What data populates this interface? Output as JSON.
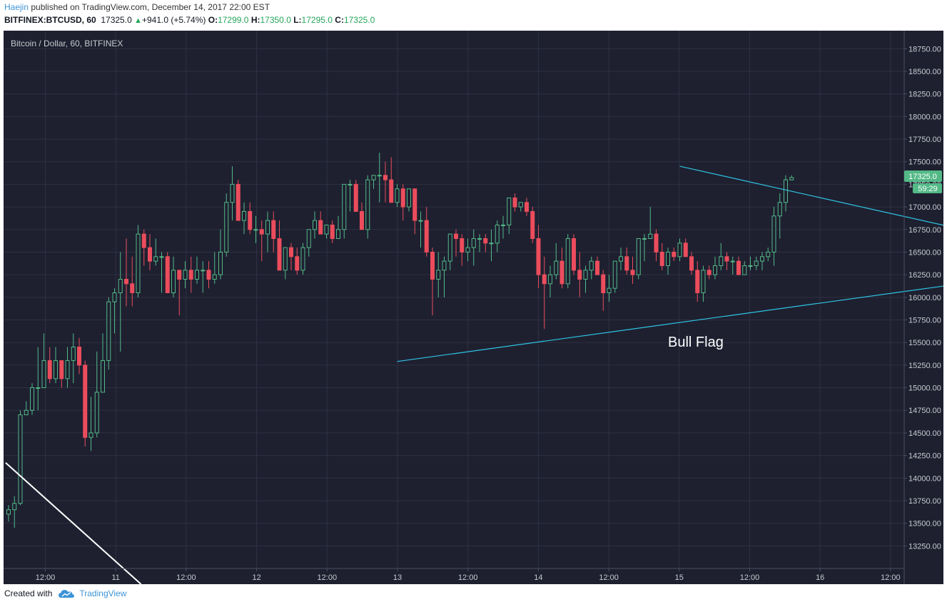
{
  "header": {
    "author": "Haejin",
    "published_text": " published on TradingView.com, December 14, 2017 22:00 EST"
  },
  "quote": {
    "symbol_label": "BITFINEX:BTCUSD, 60",
    "last": "17325.0",
    "arrow": "▲",
    "change": "+941.0 (+5.74%)",
    "o_label": "O:",
    "o": "17299.0",
    "h_label": "H:",
    "h": "17350.0",
    "l_label": "L:",
    "l": "17295.0",
    "c_label": "C:",
    "c": "17325.0"
  },
  "footer": {
    "created_with": "Created with",
    "brand": "TradingView"
  },
  "colors": {
    "background": "#1e2030",
    "up": "#53b987",
    "down": "#eb4d5c",
    "trendline": "#2fc4e3",
    "grid": "#2e3142",
    "last_price_badge": "#53b987"
  },
  "chart_data": {
    "type": "candlestick",
    "title": "Bitcoin / Dollar, 60, BITFINEX",
    "x_tick_labels": [
      "12:00",
      "11",
      "12:00",
      "12",
      "12:00",
      "13",
      "12:00",
      "14",
      "12:00",
      "15",
      "12:00",
      "16",
      "12:00"
    ],
    "y_tick_labels": [
      "18750.00",
      "18500.00",
      "18250.00",
      "18000.00",
      "17750.00",
      "17500.00",
      "17250.00",
      "17000.00",
      "16750.00",
      "16500.00",
      "16250.00",
      "16000.00",
      "15750.00",
      "15500.00",
      "15250.00",
      "15000.00",
      "14750.00",
      "14500.00",
      "14250.00",
      "14000.00",
      "13750.00",
      "13500.00",
      "13250.00"
    ],
    "ylim": [
      13000,
      18950
    ],
    "last_price_label": "17325.0",
    "indicator_label": "59:29",
    "annotation": "Bull Flag",
    "candles": [
      [
        13600,
        13700,
        13520,
        13650
      ],
      [
        13650,
        13800,
        13450,
        13720
      ],
      [
        13720,
        14750,
        13700,
        14700
      ],
      [
        14700,
        14850,
        14700,
        14750
      ],
      [
        14750,
        15050,
        14700,
        15000
      ],
      [
        15000,
        15450,
        14750,
        15000
      ],
      [
        15000,
        15600,
        15000,
        15300
      ],
      [
        15300,
        15450,
        15050,
        15100
      ],
      [
        15100,
        15450,
        15050,
        15300
      ],
      [
        15300,
        15300,
        15000,
        15100
      ],
      [
        15100,
        15450,
        15000,
        15300
      ],
      [
        15300,
        15600,
        15050,
        15450
      ],
      [
        15450,
        15550,
        15150,
        15250
      ],
      [
        15250,
        15300,
        14350,
        14450
      ],
      [
        14450,
        14900,
        14300,
        14500
      ],
      [
        14500,
        15400,
        14450,
        14950
      ],
      [
        14950,
        15600,
        14950,
        15300
      ],
      [
        15300,
        16000,
        15200,
        15950
      ],
      [
        15950,
        16100,
        15600,
        16050
      ],
      [
        16050,
        16500,
        15400,
        16200
      ],
      [
        16200,
        16650,
        15900,
        16150
      ],
      [
        16150,
        16450,
        15900,
        16050
      ],
      [
        16050,
        16800,
        16000,
        16700
      ],
      [
        16700,
        16750,
        16350,
        16550
      ],
      [
        16550,
        16700,
        16300,
        16400
      ],
      [
        16400,
        16650,
        16350,
        16450
      ],
      [
        16450,
        16500,
        16050,
        16450
      ],
      [
        16450,
        16500,
        16050,
        16050
      ],
      [
        16050,
        16450,
        16000,
        16300
      ],
      [
        16300,
        16300,
        15800,
        16200
      ],
      [
        16200,
        16400,
        16100,
        16300
      ],
      [
        16300,
        16450,
        16050,
        16200
      ],
      [
        16200,
        16450,
        16150,
        16300
      ],
      [
        16300,
        16400,
        16050,
        16300
      ],
      [
        16300,
        16400,
        16100,
        16200
      ],
      [
        16200,
        16500,
        16150,
        16250
      ],
      [
        16250,
        16750,
        16200,
        16500
      ],
      [
        16500,
        17150,
        16450,
        17050
      ],
      [
        17050,
        17450,
        16850,
        17250
      ],
      [
        17250,
        17300,
        16900,
        16850
      ],
      [
        16850,
        17050,
        16700,
        16950
      ],
      [
        16950,
        17050,
        16700,
        16750
      ],
      [
        16750,
        16900,
        16600,
        16750
      ],
      [
        16750,
        16850,
        16400,
        16700
      ],
      [
        16700,
        16950,
        16500,
        16850
      ],
      [
        16850,
        16950,
        16500,
        16650
      ],
      [
        16650,
        16850,
        16300,
        16300
      ],
      [
        16300,
        16550,
        16200,
        16550
      ],
      [
        16550,
        16600,
        16300,
        16450
      ],
      [
        16450,
        16550,
        16250,
        16300
      ],
      [
        16300,
        16600,
        16250,
        16550
      ],
      [
        16550,
        16750,
        16450,
        16750
      ],
      [
        16750,
        16950,
        16650,
        16850
      ],
      [
        16850,
        16950,
        16700,
        16700
      ],
      [
        16700,
        16800,
        16650,
        16800
      ],
      [
        16800,
        16850,
        16600,
        16650
      ],
      [
        16650,
        16900,
        16650,
        16750
      ],
      [
        16750,
        17250,
        16650,
        17250
      ],
      [
        17250,
        17300,
        16950,
        17250
      ],
      [
        17250,
        17300,
        16950,
        16950
      ],
      [
        16950,
        17050,
        16750,
        16750
      ],
      [
        16750,
        17350,
        16650,
        17300
      ],
      [
        17300,
        17350,
        17200,
        17350
      ],
      [
        17350,
        17600,
        17050,
        17350
      ],
      [
        17350,
        17500,
        17050,
        17300
      ],
      [
        17300,
        17550,
        17050,
        17050
      ],
      [
        17050,
        17250,
        17000,
        17200
      ],
      [
        17200,
        17250,
        16850,
        17000
      ],
      [
        17000,
        17200,
        16950,
        17200
      ],
      [
        17200,
        17200,
        16700,
        16850
      ],
      [
        16850,
        16950,
        16550,
        16850
      ],
      [
        16850,
        17000,
        16450,
        16500
      ],
      [
        16500,
        16550,
        15800,
        16200
      ],
      [
        16200,
        16500,
        16000,
        16300
      ],
      [
        16300,
        16450,
        16000,
        16400
      ],
      [
        16400,
        16700,
        16300,
        16700
      ],
      [
        16700,
        16750,
        16450,
        16650
      ],
      [
        16650,
        16700,
        16350,
        16500
      ],
      [
        16500,
        16650,
        16400,
        16550
      ],
      [
        16550,
        16750,
        16350,
        16650
      ],
      [
        16650,
        16700,
        16500,
        16650
      ],
      [
        16650,
        16700,
        16500,
        16600
      ],
      [
        16600,
        16750,
        16400,
        16600
      ],
      [
        16600,
        16850,
        16500,
        16800
      ],
      [
        16800,
        16900,
        16650,
        16800
      ],
      [
        16800,
        17100,
        16700,
        17100
      ],
      [
        17100,
        17150,
        16950,
        17000
      ],
      [
        17000,
        17050,
        16950,
        17050
      ],
      [
        17050,
        17100,
        16900,
        16950
      ],
      [
        16950,
        17000,
        16600,
        16650
      ],
      [
        16650,
        16800,
        16100,
        16250
      ],
      [
        16250,
        16450,
        15650,
        16150
      ],
      [
        16150,
        16350,
        16000,
        16250
      ],
      [
        16250,
        16600,
        16200,
        16400
      ],
      [
        16400,
        16550,
        16100,
        16150
      ],
      [
        16150,
        16700,
        16100,
        16650
      ],
      [
        16650,
        16700,
        16250,
        16300
      ],
      [
        16300,
        16500,
        16000,
        16200
      ],
      [
        16200,
        16350,
        16050,
        16300
      ],
      [
        16300,
        16450,
        16200,
        16400
      ],
      [
        16400,
        16450,
        16250,
        16250
      ],
      [
        16250,
        16300,
        15850,
        16050
      ],
      [
        16050,
        16250,
        15950,
        16100
      ],
      [
        16100,
        16400,
        16050,
        16400
      ],
      [
        16400,
        16550,
        16300,
        16450
      ],
      [
        16450,
        16550,
        16250,
        16300
      ],
      [
        16300,
        16450,
        16150,
        16250
      ],
      [
        16250,
        16650,
        16200,
        16650
      ],
      [
        16650,
        16700,
        16400,
        16650
      ],
      [
        16650,
        17000,
        16650,
        16700
      ],
      [
        16700,
        16750,
        16400,
        16500
      ],
      [
        16500,
        16600,
        16300,
        16350
      ],
      [
        16350,
        16550,
        16250,
        16500
      ],
      [
        16500,
        16550,
        16400,
        16450
      ],
      [
        16450,
        16650,
        16400,
        16600
      ],
      [
        16600,
        16650,
        16450,
        16450
      ],
      [
        16450,
        16500,
        16250,
        16300
      ],
      [
        16300,
        16400,
        15950,
        16050
      ],
      [
        16050,
        16350,
        15950,
        16300
      ],
      [
        16300,
        16350,
        16200,
        16250
      ],
      [
        16250,
        16450,
        16200,
        16350
      ],
      [
        16350,
        16600,
        16300,
        16450
      ],
      [
        16450,
        16500,
        16300,
        16400
      ],
      [
        16400,
        16450,
        16250,
        16400
      ],
      [
        16400,
        16450,
        16250,
        16250
      ],
      [
        16250,
        16400,
        16250,
        16350
      ],
      [
        16350,
        16450,
        16300,
        16350
      ],
      [
        16350,
        16450,
        16300,
        16400
      ],
      [
        16400,
        16500,
        16300,
        16450
      ],
      [
        16450,
        16550,
        16400,
        16500
      ],
      [
        16500,
        17000,
        16350,
        16900
      ],
      [
        16900,
        17150,
        16650,
        17050
      ],
      [
        17050,
        17350,
        16950,
        17300
      ],
      [
        17299,
        17350,
        17295,
        17325
      ]
    ],
    "trendlines": [
      {
        "name": "flag-upper",
        "from": [
          114,
          17450
        ],
        "to": [
          195,
          16270
        ]
      },
      {
        "name": "flag-lower",
        "from": [
          66,
          15290
        ],
        "to": [
          195,
          16450
        ]
      },
      {
        "name": "prior-down",
        "from": [
          -0.5,
          14170
        ],
        "to": [
          22.5,
          13000
        ]
      }
    ]
  }
}
